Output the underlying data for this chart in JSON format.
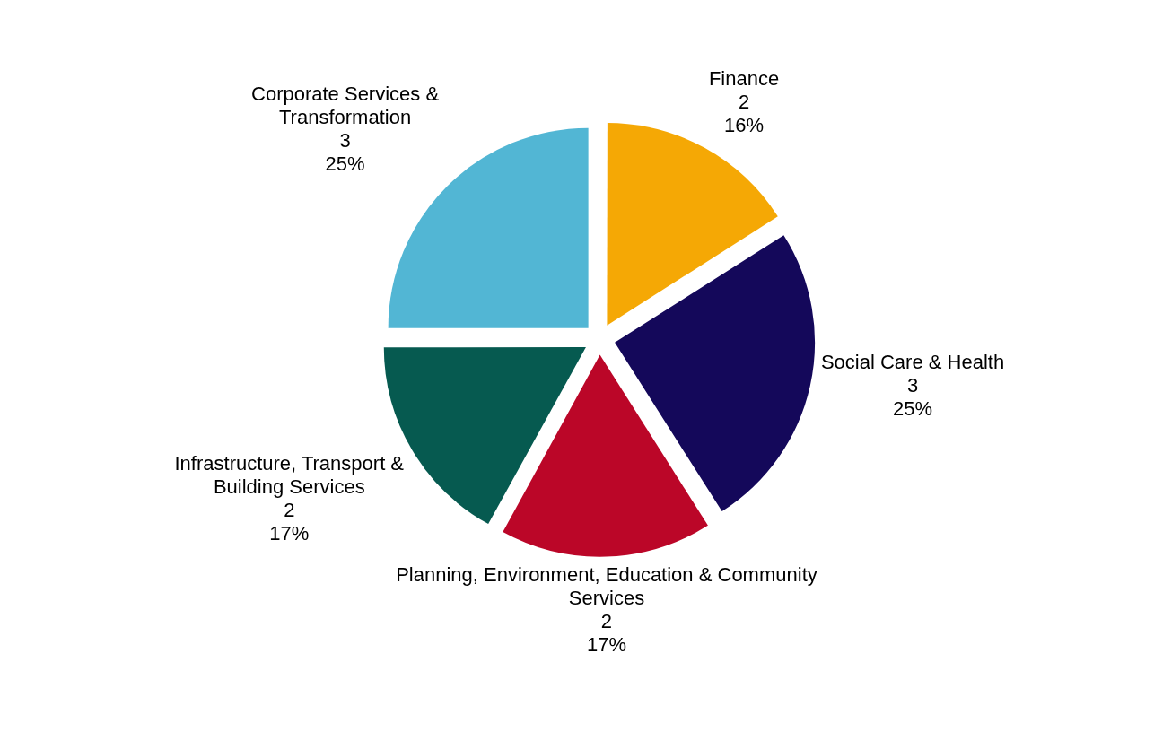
{
  "chart_data": {
    "type": "pie",
    "categories": [
      "Finance",
      "Social Care & Health",
      "Planning, Environment, Education & Community Services",
      "Infrastructure, Transport & Building Services",
      "Corporate Services & Transformation"
    ],
    "values": [
      16,
      25,
      17,
      17,
      25
    ],
    "colors": [
      "#f5a805",
      "#14085a",
      "#bb0628",
      "#065a50",
      "#52b6d4"
    ],
    "value_labels": [
      "2\n16%",
      "3\n25%",
      "2\n17%",
      "2\n17%",
      "3\n25%"
    ]
  }
}
